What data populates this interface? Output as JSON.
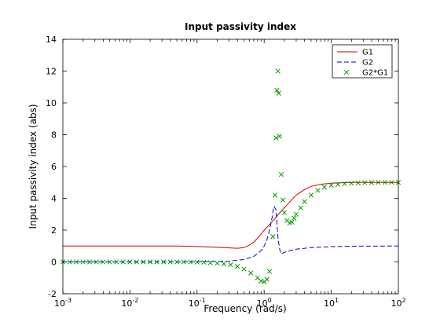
{
  "chart_data": {
    "type": "line",
    "title": "Input passivity index",
    "xlabel": "Frequency (rad/s)",
    "ylabel": "Input passivity index (abs)",
    "xscale": "log",
    "xlim": [
      0.001,
      100
    ],
    "ylim": [
      -2,
      14
    ],
    "x_ticks": [
      {
        "value": 0.001,
        "base": "10",
        "exp": "-3"
      },
      {
        "value": 0.01,
        "base": "10",
        "exp": "-2"
      },
      {
        "value": 0.1,
        "base": "10",
        "exp": "-1"
      },
      {
        "value": 1,
        "base": "10",
        "exp": "0"
      },
      {
        "value": 10,
        "base": "10",
        "exp": "1"
      },
      {
        "value": 100,
        "base": "10",
        "exp": "2"
      }
    ],
    "y_ticks": [
      -2,
      0,
      2,
      4,
      6,
      8,
      10,
      12,
      14
    ],
    "y_tick_labels": [
      "-2",
      "0",
      "2",
      "4",
      "6",
      "8",
      "10",
      "12",
      "14"
    ],
    "grid": false,
    "legend_position": "top-right",
    "series": [
      {
        "name": "G1",
        "color": "#cc0000",
        "style": "solid",
        "x": [
          0.001,
          0.01,
          0.05,
          0.1,
          0.2,
          0.3,
          0.4,
          0.5,
          0.6,
          0.7,
          0.8,
          0.9,
          1.0,
          1.2,
          1.4,
          1.6,
          2.0,
          2.5,
          3.0,
          4.0,
          5.0,
          7.0,
          10.0,
          15.0,
          20.0,
          50.0,
          100.0
        ],
        "y": [
          1.0,
          1.0,
          1.0,
          0.97,
          0.92,
          0.88,
          0.86,
          0.9,
          1.05,
          1.25,
          1.5,
          1.75,
          2.0,
          2.35,
          2.65,
          2.95,
          3.4,
          3.85,
          4.2,
          4.55,
          4.75,
          4.88,
          4.95,
          4.98,
          5.0,
          5.0,
          5.0
        ]
      },
      {
        "name": "G2",
        "color": "#0000cc",
        "style": "dashed",
        "x": [
          0.001,
          0.1,
          0.3,
          0.5,
          0.7,
          0.9,
          1.0,
          1.1,
          1.2,
          1.3,
          1.4,
          1.5,
          1.6,
          1.7,
          1.8,
          2.0,
          2.5,
          3.0,
          5.0,
          10.0,
          20.0,
          100.0
        ],
        "y": [
          0.0,
          0.0,
          0.05,
          0.15,
          0.35,
          0.7,
          1.0,
          1.4,
          2.0,
          2.7,
          3.5,
          3.3,
          1.6,
          0.8,
          0.5,
          0.6,
          0.72,
          0.8,
          0.9,
          0.96,
          0.99,
          1.0
        ]
      },
      {
        "name": "G2*G1",
        "color": "#009900",
        "style": "markers-x",
        "x": [
          0.001,
          0.00126,
          0.00158,
          0.002,
          0.00251,
          0.00316,
          0.00398,
          0.00501,
          0.00631,
          0.00794,
          0.01,
          0.0126,
          0.0158,
          0.02,
          0.0251,
          0.0316,
          0.0398,
          0.0501,
          0.0631,
          0.0794,
          0.1,
          0.126,
          0.158,
          0.2,
          0.251,
          0.316,
          0.398,
          0.501,
          0.631,
          0.794,
          0.9,
          1.0,
          1.1,
          1.2,
          1.35,
          1.45,
          1.5,
          1.55,
          1.6,
          1.65,
          1.7,
          1.8,
          1.9,
          2.0,
          2.2,
          2.4,
          2.6,
          2.8,
          3.0,
          3.5,
          4.0,
          5.0,
          6.3,
          7.9,
          10.0,
          12.6,
          15.8,
          20.0,
          25.1,
          31.6,
          39.8,
          50.1,
          63.1,
          79.4,
          100.0
        ],
        "y": [
          0.0,
          0.0,
          0.0,
          0.0,
          0.0,
          0.0,
          0.0,
          0.0,
          0.0,
          0.0,
          0.0,
          0.0,
          0.0,
          0.0,
          0.0,
          0.0,
          0.0,
          0.0,
          0.0,
          0.0,
          -0.01,
          -0.02,
          -0.05,
          -0.08,
          -0.12,
          -0.18,
          -0.28,
          -0.45,
          -0.7,
          -1.0,
          -1.2,
          -1.25,
          -1.1,
          -0.6,
          1.6,
          4.2,
          7.8,
          10.8,
          12.0,
          10.6,
          7.9,
          5.5,
          3.9,
          3.1,
          2.6,
          2.45,
          2.5,
          2.75,
          3.0,
          3.4,
          3.8,
          4.2,
          4.5,
          4.7,
          4.82,
          4.88,
          4.92,
          4.95,
          4.97,
          4.98,
          4.99,
          5.0,
          5.0,
          5.0,
          5.0
        ]
      }
    ]
  }
}
